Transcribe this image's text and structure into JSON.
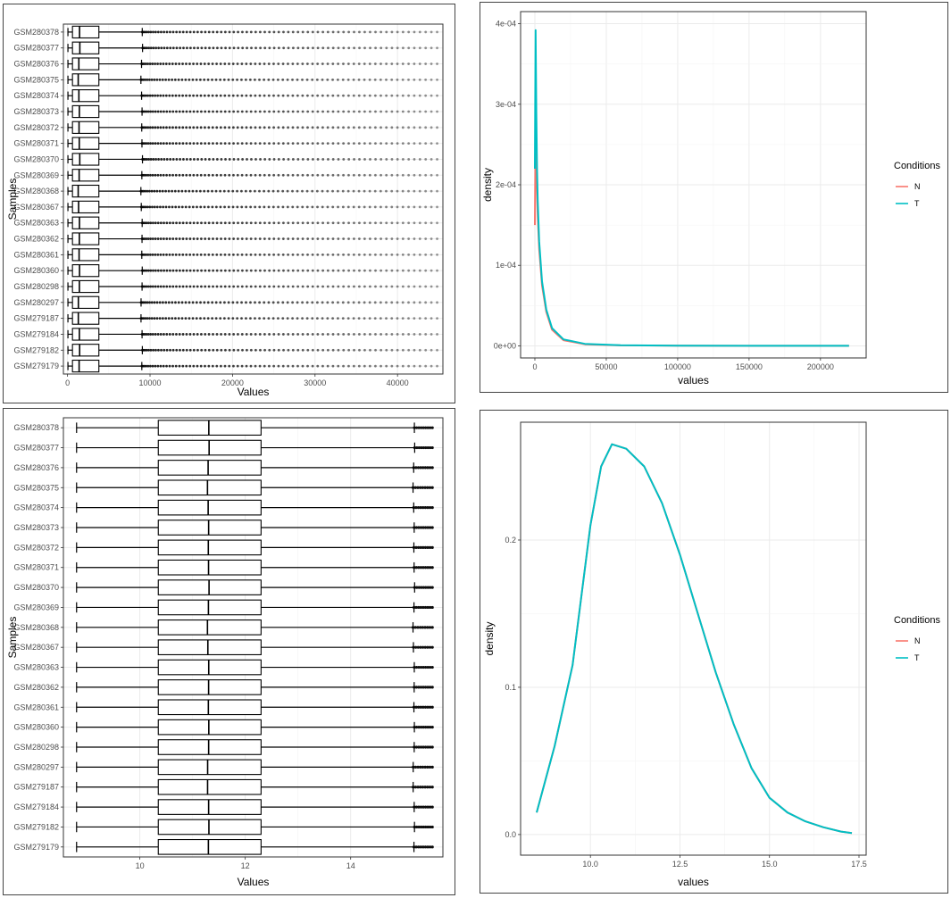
{
  "chart_data": [
    {
      "type": "boxplot",
      "orientation": "horizontal",
      "ylabel": "Samples",
      "xlabel": "Values",
      "xlim": [
        -500,
        45500
      ],
      "x_ticks": [
        0,
        10000,
        20000,
        30000,
        40000
      ],
      "x_tick_labels": [
        "0",
        "10000",
        "20000",
        "30000",
        "40000"
      ],
      "categories": [
        "GSM280378",
        "GSM280377",
        "GSM280376",
        "GSM280375",
        "GSM280374",
        "GSM280373",
        "GSM280372",
        "GSM280371",
        "GSM280370",
        "GSM280369",
        "GSM280368",
        "GSM280367",
        "GSM280363",
        "GSM280362",
        "GSM280361",
        "GSM280360",
        "GSM280298",
        "GSM280297",
        "GSM279187",
        "GSM279184",
        "GSM279182",
        "GSM279179"
      ],
      "stats": {
        "whisker_low": 50,
        "q1": 600,
        "median": 1400,
        "q3": 3800,
        "whisker_high": 9000,
        "outlier_max": 44800
      },
      "grid": true
    },
    {
      "type": "line",
      "subtype": "density",
      "xlabel": "values",
      "ylabel": "density",
      "xlim": [
        -10000,
        232000
      ],
      "ylim": [
        -1.5e-05,
        0.000415
      ],
      "x_ticks": [
        0,
        50000,
        100000,
        150000,
        200000
      ],
      "x_tick_labels": [
        "0",
        "50000",
        "100000",
        "150000",
        "200000"
      ],
      "y_ticks": [
        0,
        0.0001,
        0.0002,
        0.0003,
        0.0004
      ],
      "y_tick_labels": [
        "0e+00",
        "1e-04",
        "2e-04",
        "3e-04",
        "4e-04"
      ],
      "legend": {
        "title": "Conditions",
        "position": "right",
        "entries": [
          {
            "label": "N",
            "color": "#F8766D"
          },
          {
            "label": "T",
            "color": "#00BFC4"
          }
        ]
      },
      "series": [
        {
          "name": "N",
          "color": "#F8766D",
          "x": [
            0,
            500,
            1000,
            1500,
            2000,
            3000,
            5000,
            8000,
            12000,
            20000,
            35000,
            60000,
            100000,
            150000,
            200000,
            220000
          ],
          "y": [
            0.00015,
            0.00028,
            0.00023,
            0.00019,
            0.00016,
            0.00012,
            7.5e-05,
            4.2e-05,
            2e-05,
            7e-06,
            2e-06,
            6e-07,
            2e-07,
            1e-07,
            5e-08,
            4e-08
          ]
        },
        {
          "name": "T",
          "color": "#00BFC4",
          "x": [
            0,
            500,
            1000,
            1500,
            2000,
            3000,
            5000,
            8000,
            12000,
            20000,
            35000,
            60000,
            100000,
            150000,
            200000,
            220000
          ],
          "y": [
            0.00022,
            0.000392,
            0.00029,
            0.00022,
            0.00018,
            0.00013,
            8e-05,
            4.5e-05,
            2.2e-05,
            8e-06,
            2.5e-06,
            7e-07,
            2e-07,
            1e-07,
            5e-08,
            4e-08
          ]
        }
      ],
      "grid": true
    },
    {
      "type": "boxplot",
      "orientation": "horizontal",
      "ylabel": "Samples",
      "xlabel": "Values",
      "xlim": [
        8.55,
        15.75
      ],
      "x_ticks": [
        10,
        12,
        14
      ],
      "x_tick_labels": [
        "10",
        "12",
        "14"
      ],
      "categories": [
        "GSM280378",
        "GSM280377",
        "GSM280376",
        "GSM280375",
        "GSM280374",
        "GSM280373",
        "GSM280372",
        "GSM280371",
        "GSM280370",
        "GSM280369",
        "GSM280368",
        "GSM280367",
        "GSM280363",
        "GSM280362",
        "GSM280361",
        "GSM280360",
        "GSM280298",
        "GSM280297",
        "GSM279187",
        "GSM279184",
        "GSM279182",
        "GSM279179"
      ],
      "stats": {
        "whisker_low": 8.8,
        "q1": 10.35,
        "median": 11.3,
        "q3": 12.3,
        "whisker_high": 15.2,
        "outlier_max": 15.55
      },
      "grid": true
    },
    {
      "type": "line",
      "subtype": "density",
      "xlabel": "values",
      "ylabel": "density",
      "xlim": [
        8.05,
        17.7
      ],
      "ylim": [
        -0.014,
        0.28
      ],
      "x_ticks": [
        10.0,
        12.5,
        15.0,
        17.5
      ],
      "x_tick_labels": [
        "10.0",
        "12.5",
        "15.0",
        "17.5"
      ],
      "y_ticks": [
        0.0,
        0.1,
        0.2
      ],
      "y_tick_labels": [
        "0.0",
        "0.1",
        "0.2"
      ],
      "legend": {
        "title": "Conditions",
        "position": "right",
        "entries": [
          {
            "label": "N",
            "color": "#F8766D"
          },
          {
            "label": "T",
            "color": "#00BFC4"
          }
        ]
      },
      "series": [
        {
          "name": "N",
          "color": "#F8766D",
          "x": [
            8.5,
            9.0,
            9.5,
            10.0,
            10.3,
            10.6,
            11.0,
            11.5,
            12.0,
            12.5,
            13.0,
            13.5,
            14.0,
            14.5,
            15.0,
            15.5,
            16.0,
            16.5,
            17.0,
            17.3
          ],
          "y": [
            0.015,
            0.06,
            0.115,
            0.21,
            0.25,
            0.265,
            0.262,
            0.25,
            0.225,
            0.19,
            0.15,
            0.11,
            0.075,
            0.045,
            0.025,
            0.015,
            0.009,
            0.005,
            0.002,
            0.001
          ]
        },
        {
          "name": "T",
          "color": "#00BFC4",
          "x": [
            8.5,
            9.0,
            9.5,
            10.0,
            10.3,
            10.6,
            11.0,
            11.5,
            12.0,
            12.5,
            13.0,
            13.5,
            14.0,
            14.5,
            15.0,
            15.5,
            16.0,
            16.5,
            17.0,
            17.3
          ],
          "y": [
            0.015,
            0.06,
            0.115,
            0.21,
            0.25,
            0.265,
            0.262,
            0.25,
            0.225,
            0.19,
            0.15,
            0.11,
            0.075,
            0.045,
            0.025,
            0.015,
            0.009,
            0.005,
            0.002,
            0.001
          ]
        }
      ],
      "grid": true
    }
  ]
}
